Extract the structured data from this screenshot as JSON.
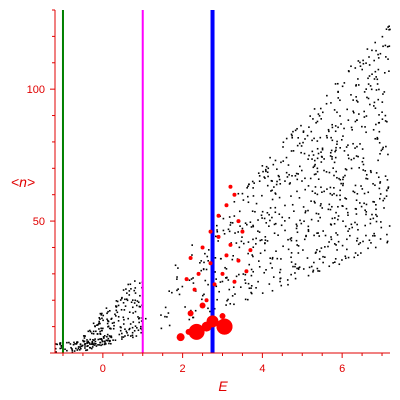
{
  "chart_data": {
    "type": "scatter",
    "xlabel": "E",
    "ylabel": "<n>",
    "xlim": [
      -1.2,
      7.2
    ],
    "ylim": [
      0,
      130
    ],
    "x_ticks": [
      0,
      2,
      4,
      6
    ],
    "y_ticks": [
      50,
      100
    ],
    "axis_color": "#e00000",
    "vertical_lines": [
      {
        "x": -1.0,
        "color": "#008000"
      },
      {
        "x": 1.0,
        "color": "#ff00ff"
      },
      {
        "x": 2.75,
        "color": "#0000ff"
      }
    ],
    "black_points_summary": {
      "color": "#000000",
      "description_bands": [
        {
          "x_range": [
            -1.2,
            0.2
          ],
          "y_range": [
            0,
            5
          ]
        },
        {
          "x_range": [
            -0.5,
            1.0
          ],
          "y_range": [
            2,
            30
          ]
        },
        {
          "x_range": [
            1.0,
            7.2
          ],
          "y_lower": "about 4 + 6.0*(x-1)",
          "y_upper": "about 20 + 17*(x-1)"
        }
      ]
    },
    "red_points": [
      {
        "x": 2.1,
        "y": 28,
        "size": 2
      },
      {
        "x": 2.2,
        "y": 36,
        "size": 2
      },
      {
        "x": 2.3,
        "y": 24,
        "size": 2
      },
      {
        "x": 2.4,
        "y": 30,
        "size": 2
      },
      {
        "x": 2.5,
        "y": 40,
        "size": 2
      },
      {
        "x": 2.6,
        "y": 20,
        "size": 2
      },
      {
        "x": 2.7,
        "y": 34,
        "size": 2
      },
      {
        "x": 2.8,
        "y": 26,
        "size": 2
      },
      {
        "x": 2.9,
        "y": 44,
        "size": 2
      },
      {
        "x": 3.0,
        "y": 30,
        "size": 2
      },
      {
        "x": 3.1,
        "y": 37,
        "size": 2
      },
      {
        "x": 3.2,
        "y": 41,
        "size": 2
      },
      {
        "x": 3.3,
        "y": 27,
        "size": 2
      },
      {
        "x": 3.4,
        "y": 35,
        "size": 2
      },
      {
        "x": 3.5,
        "y": 46,
        "size": 2
      },
      {
        "x": 3.6,
        "y": 31,
        "size": 2
      },
      {
        "x": 3.7,
        "y": 39,
        "size": 2
      },
      {
        "x": 3.3,
        "y": 60,
        "size": 2
      },
      {
        "x": 3.2,
        "y": 63,
        "size": 2
      },
      {
        "x": 2.9,
        "y": 52,
        "size": 2
      },
      {
        "x": 2.7,
        "y": 46,
        "size": 2
      },
      {
        "x": 3.1,
        "y": 56,
        "size": 2
      },
      {
        "x": 3.4,
        "y": 50,
        "size": 2
      },
      {
        "x": 2.5,
        "y": 18,
        "size": 3
      },
      {
        "x": 2.2,
        "y": 15,
        "size": 3
      },
      {
        "x": 2.8,
        "y": 12,
        "size": 3
      },
      {
        "x": 3.0,
        "y": 14,
        "size": 3
      },
      {
        "x": 2.6,
        "y": 10,
        "size": 5
      },
      {
        "x": 2.35,
        "y": 8,
        "size": 6
      },
      {
        "x": 3.05,
        "y": 10,
        "size": 8
      },
      {
        "x": 2.35,
        "y": 8,
        "size": 8
      },
      {
        "x": 1.95,
        "y": 6,
        "size": 4
      },
      {
        "x": 2.75,
        "y": 12,
        "size": 6
      },
      {
        "x": 3.05,
        "y": 10,
        "size": 8
      },
      {
        "x": 2.15,
        "y": 8,
        "size": 3
      }
    ]
  }
}
